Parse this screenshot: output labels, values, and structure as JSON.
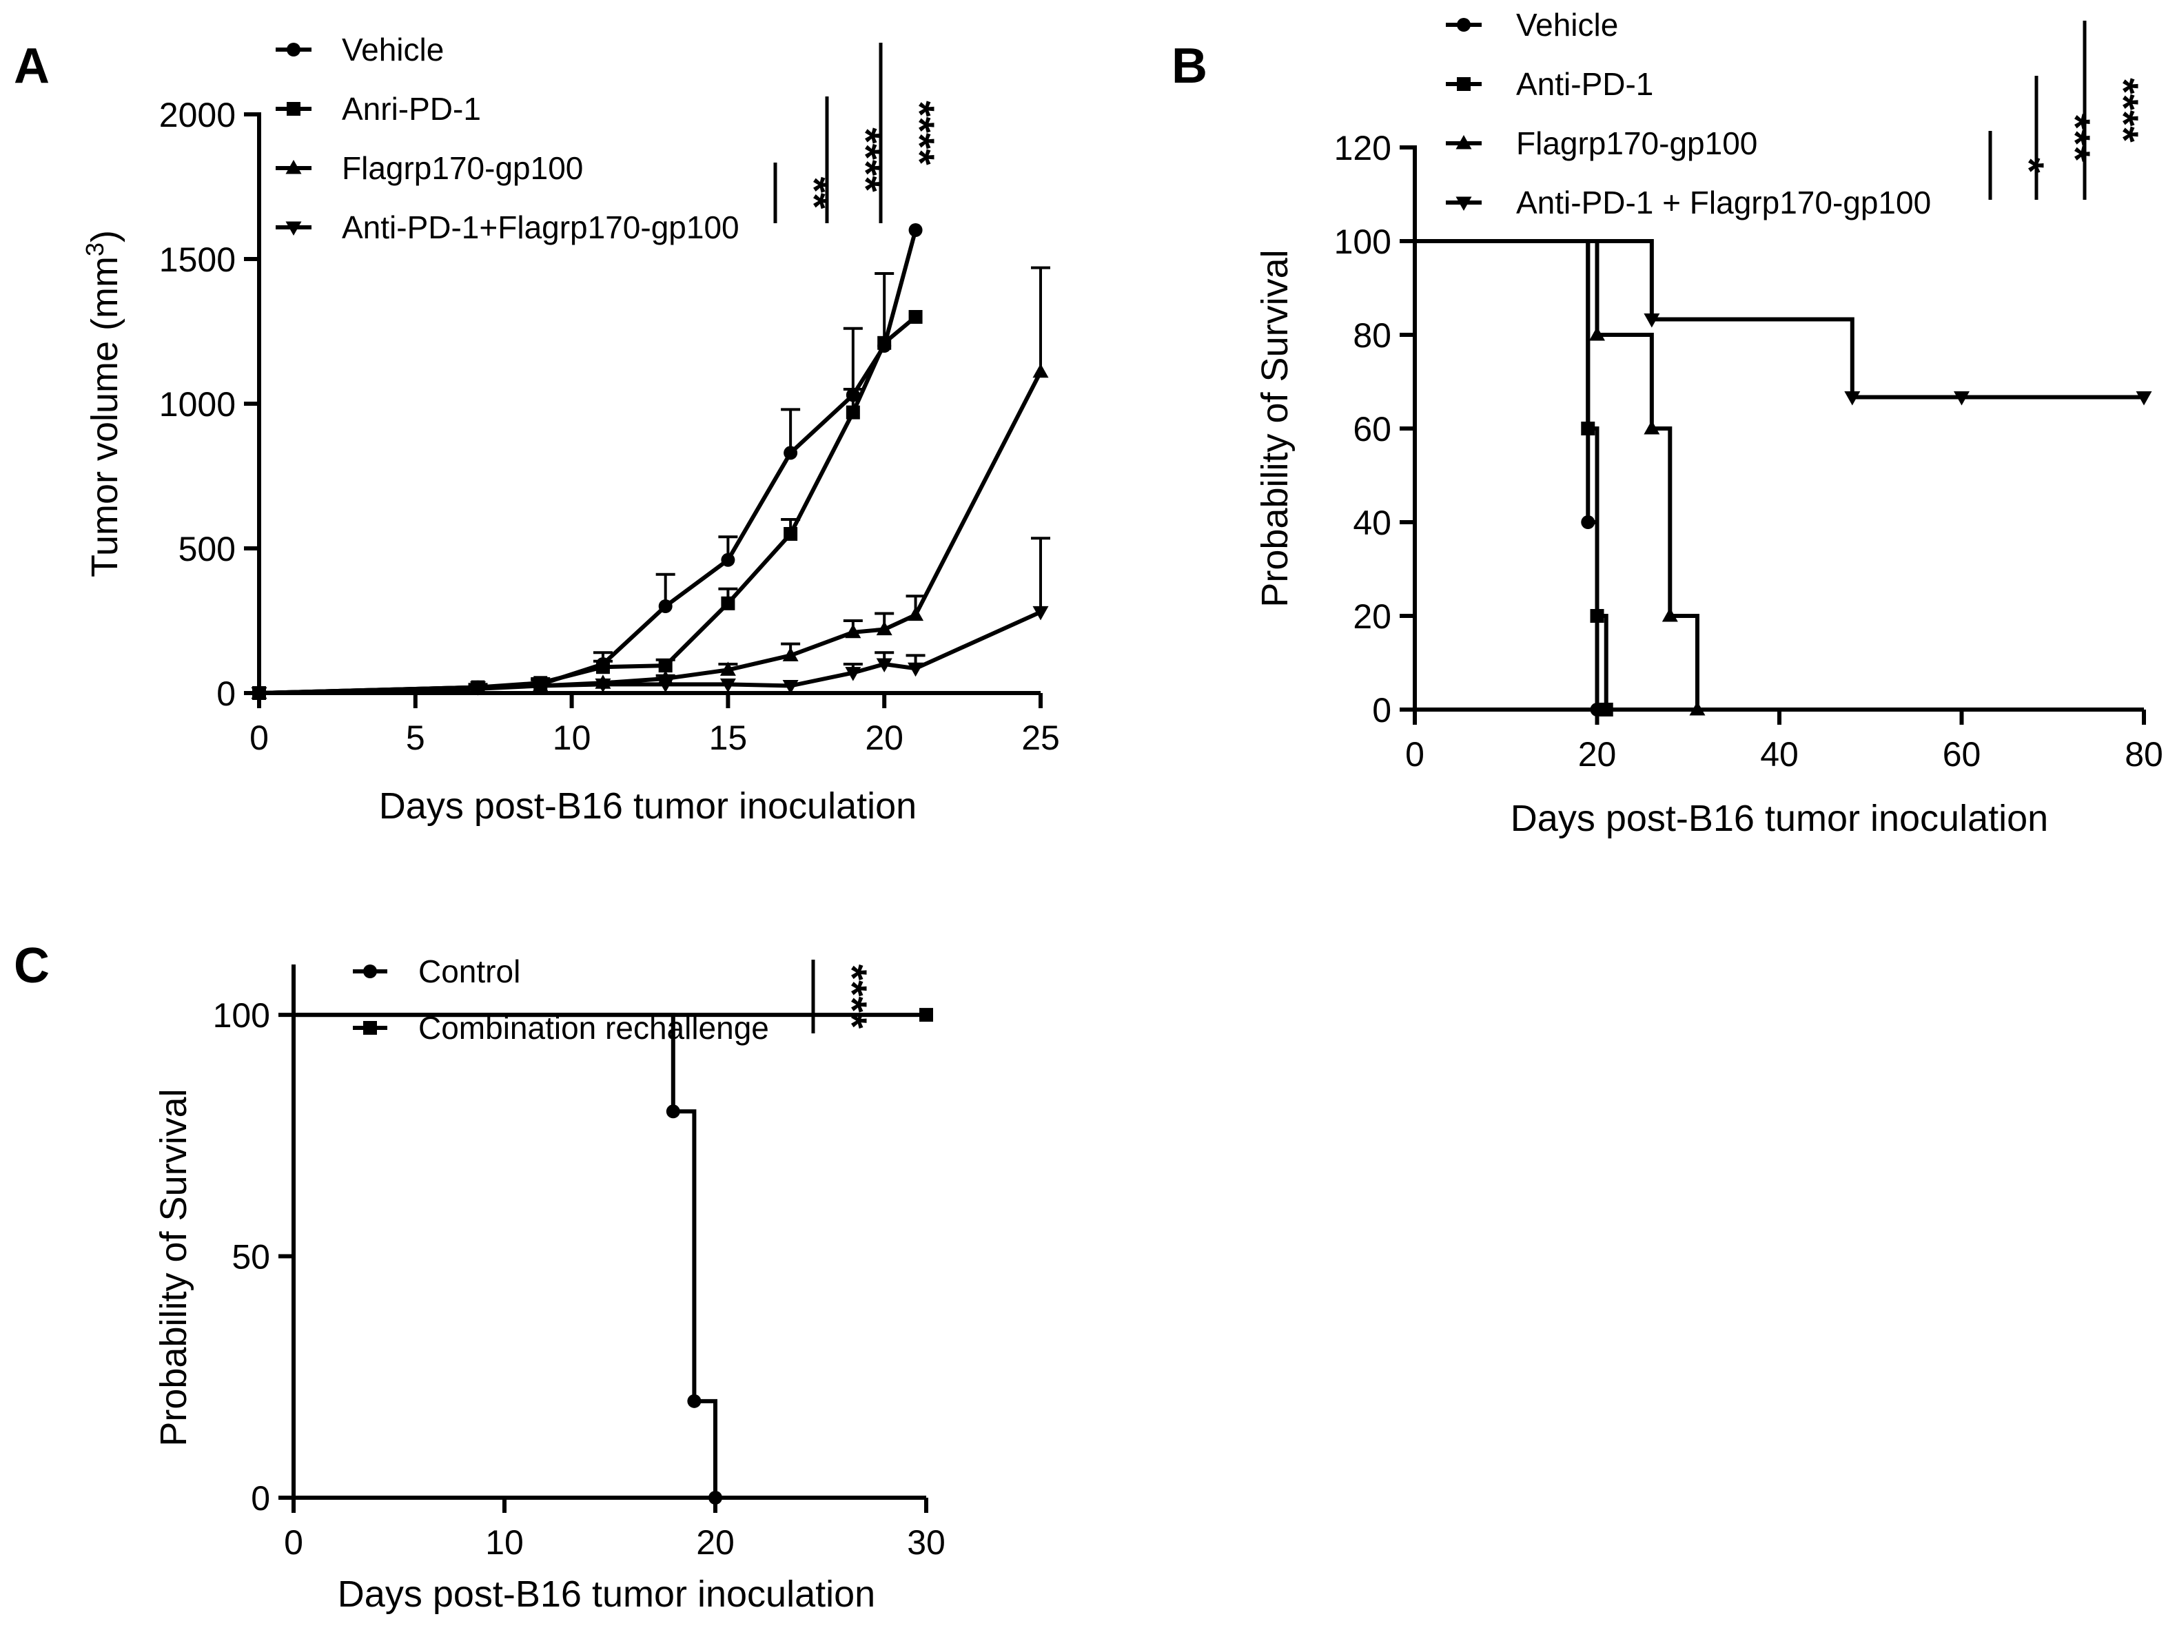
{
  "chart_data": [
    {
      "panel": "A",
      "type": "line",
      "xlabel": "Days post-B16 tumor inoculation",
      "ylabel": "Tumor volume (mm",
      "ylabel_sup": "3",
      "ylabel_close": ")",
      "xlim": [
        0,
        25
      ],
      "ylim": [
        0,
        2000
      ],
      "xticks": [
        "0",
        "5",
        "10",
        "15",
        "20",
        "25"
      ],
      "yticks": [
        "0",
        "500",
        "1000",
        "1500",
        "2000"
      ],
      "legend": [
        "Vehicle",
        "Anri-PD-1",
        "Flagrp170-gp100",
        "Anti-PD-1+Flagrp170-gp100"
      ],
      "significance": [
        "**",
        "****",
        "****"
      ],
      "series": [
        {
          "name": "Vehicle",
          "marker": "circle",
          "x": [
            0,
            7,
            9,
            11,
            13,
            15,
            17,
            19,
            20,
            21
          ],
          "y": [
            0,
            20,
            30,
            100,
            300,
            460,
            830,
            1030,
            1200,
            1600
          ],
          "err": [
            0,
            10,
            15,
            40,
            110,
            80,
            150,
            230,
            250,
            0
          ]
        },
        {
          "name": "Anri-PD-1",
          "marker": "square",
          "x": [
            0,
            7,
            9,
            11,
            13,
            15,
            17,
            19,
            20,
            21
          ],
          "y": [
            0,
            20,
            35,
            90,
            95,
            310,
            550,
            970,
            1210,
            1300
          ],
          "err": [
            0,
            10,
            15,
            20,
            20,
            50,
            50,
            80,
            0,
            0
          ]
        },
        {
          "name": "Flagrp170-gp100",
          "marker": "triangle-up",
          "x": [
            0,
            7,
            9,
            11,
            13,
            15,
            17,
            19,
            20,
            21,
            25
          ],
          "y": [
            0,
            15,
            25,
            35,
            50,
            80,
            130,
            210,
            220,
            270,
            1110
          ],
          "err": [
            0,
            0,
            0,
            0,
            10,
            20,
            40,
            40,
            55,
            65,
            360
          ]
        },
        {
          "name": "Anti-PD-1+Flagrp170-gp100",
          "marker": "triangle-down",
          "x": [
            0,
            7,
            9,
            11,
            13,
            15,
            17,
            19,
            20,
            21,
            25
          ],
          "y": [
            0,
            20,
            25,
            30,
            30,
            30,
            25,
            70,
            100,
            85,
            280
          ],
          "err": [
            0,
            0,
            0,
            0,
            0,
            0,
            0,
            30,
            40,
            45,
            255
          ]
        }
      ]
    },
    {
      "panel": "B",
      "type": "line",
      "step": true,
      "xlabel": "Days post-B16 tumor inoculation",
      "ylabel": "Probability of Survival",
      "xlim": [
        0,
        80
      ],
      "ylim": [
        0,
        120
      ],
      "xticks": [
        "0",
        "20",
        "40",
        "60",
        "80"
      ],
      "yticks": [
        "0",
        "20",
        "40",
        "60",
        "80",
        "100",
        "120"
      ],
      "legend": [
        "Vehicle",
        "Anti-PD-1",
        "Flagrp170-gp100",
        "Anti-PD-1 + Flagrp170-gp100"
      ],
      "significance": [
        "*",
        "***",
        "****"
      ],
      "series": [
        {
          "name": "Vehicle",
          "marker": "circle",
          "steps": [
            [
              0,
              100
            ],
            [
              19,
              40
            ],
            [
              20,
              0
            ]
          ],
          "points": [
            [
              19,
              40
            ],
            [
              20,
              0
            ]
          ]
        },
        {
          "name": "Anti-PD-1",
          "marker": "square",
          "steps": [
            [
              0,
              100
            ],
            [
              19,
              60
            ],
            [
              20,
              20
            ],
            [
              21,
              0
            ]
          ],
          "points": [
            [
              19,
              60
            ],
            [
              20,
              20
            ],
            [
              21,
              0
            ]
          ]
        },
        {
          "name": "Flagrp170-gp100",
          "marker": "triangle-up",
          "steps": [
            [
              0,
              100
            ],
            [
              20,
              80
            ],
            [
              26,
              60
            ],
            [
              28,
              20
            ],
            [
              31,
              0
            ]
          ],
          "points": [
            [
              20,
              80
            ],
            [
              26,
              60
            ],
            [
              28,
              20
            ],
            [
              31,
              0
            ]
          ]
        },
        {
          "name": "Anti-PD-1 + Flagrp170-gp100",
          "marker": "triangle-down",
          "steps": [
            [
              0,
              100
            ],
            [
              26,
              83.3
            ],
            [
              48,
              66.7
            ],
            [
              80,
              66.7
            ]
          ],
          "points": [
            [
              26,
              83.3
            ],
            [
              48,
              66.7
            ],
            [
              60,
              66.7
            ],
            [
              80,
              66.7
            ]
          ]
        }
      ]
    },
    {
      "panel": "C",
      "type": "line",
      "step": true,
      "xlabel": "Days post-B16 tumor inoculation",
      "ylabel": "Probability of Survival",
      "xlim": [
        0,
        30
      ],
      "ylim": [
        0,
        110
      ],
      "xticks": [
        "0",
        "10",
        "20",
        "30"
      ],
      "yticks": [
        "0",
        "50",
        "100"
      ],
      "legend": [
        "Control",
        "Combination rechallenge"
      ],
      "significance": [
        "****"
      ],
      "series": [
        {
          "name": "Control",
          "marker": "circle",
          "steps": [
            [
              0,
              100
            ],
            [
              18,
              80
            ],
            [
              19,
              20
            ],
            [
              20,
              0
            ]
          ],
          "points": [
            [
              18,
              80
            ],
            [
              19,
              20
            ],
            [
              20,
              0
            ]
          ]
        },
        {
          "name": "Combination rechallenge",
          "marker": "square",
          "steps": [
            [
              0,
              100
            ],
            [
              30,
              100
            ]
          ],
          "points": [
            [
              30,
              100
            ]
          ]
        }
      ]
    }
  ]
}
